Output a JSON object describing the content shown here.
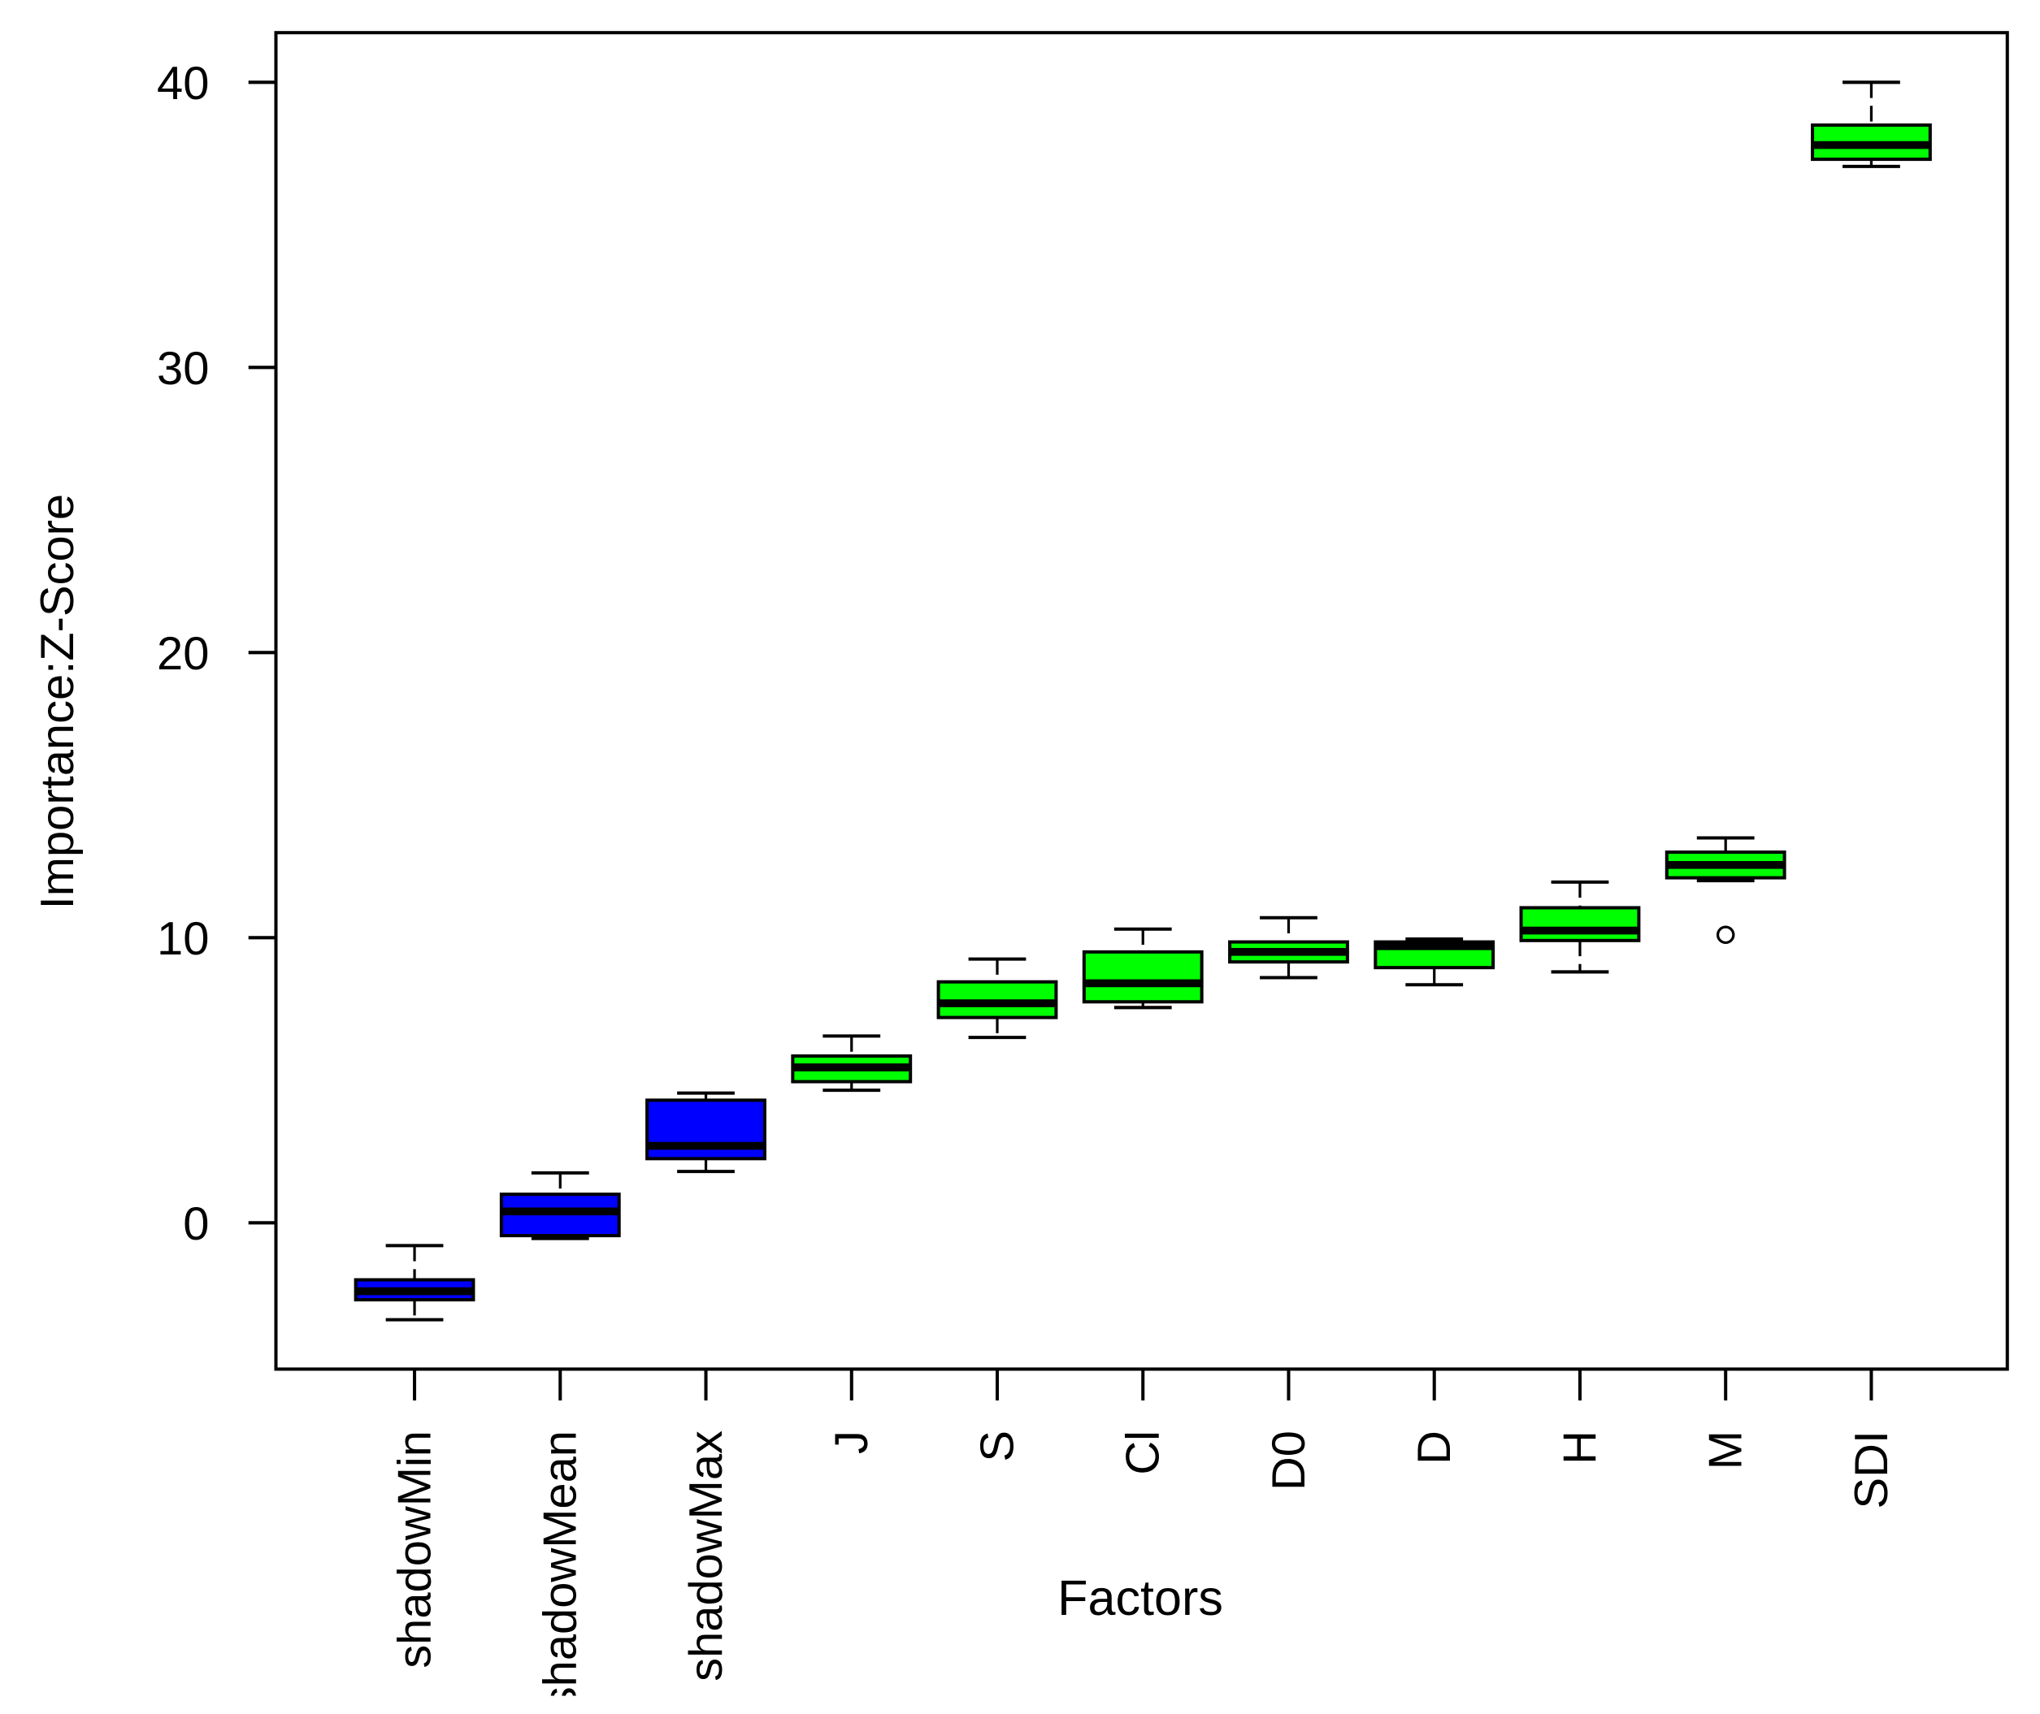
{
  "chart_data": {
    "type": "boxplot",
    "title": "",
    "xlabel": "Factors",
    "ylabel": "Importance:Z-Score",
    "ylim": [
      -5,
      41.8
    ],
    "yticks": [
      0,
      10,
      20,
      30,
      40
    ],
    "grid": false,
    "colors": {
      "rejected": "#0000ff",
      "confirmed": "#00ff00"
    },
    "categories": [
      "shadowMin",
      "shadowMean",
      "shadowMax",
      "J",
      "S",
      "Cl",
      "D0",
      "D",
      "H",
      "M",
      "SDI"
    ],
    "boxes": [
      {
        "name": "shadowMin",
        "group": "rejected",
        "min": -3.4,
        "q1": -2.7,
        "median": -2.4,
        "q3": -2.0,
        "max": -0.8,
        "outliers": []
      },
      {
        "name": "shadowMean",
        "group": "rejected",
        "min": -0.55,
        "q1": -0.45,
        "median": 0.4,
        "q3": 1.0,
        "max": 1.75,
        "outliers": []
      },
      {
        "name": "shadowMax",
        "group": "rejected",
        "min": 1.8,
        "q1": 2.25,
        "median": 2.7,
        "q3": 4.3,
        "max": 4.55,
        "outliers": []
      },
      {
        "name": "J",
        "group": "confirmed",
        "min": 4.65,
        "q1": 4.95,
        "median": 5.45,
        "q3": 5.85,
        "max": 6.55,
        "outliers": []
      },
      {
        "name": "S",
        "group": "confirmed",
        "min": 6.5,
        "q1": 7.2,
        "median": 7.7,
        "q3": 8.45,
        "max": 9.25,
        "outliers": []
      },
      {
        "name": "Cl",
        "group": "confirmed",
        "min": 7.55,
        "q1": 7.75,
        "median": 8.4,
        "q3": 9.5,
        "max": 10.3,
        "outliers": []
      },
      {
        "name": "D0",
        "group": "confirmed",
        "min": 8.6,
        "q1": 9.15,
        "median": 9.5,
        "q3": 9.85,
        "max": 10.7,
        "outliers": []
      },
      {
        "name": "D",
        "group": "confirmed",
        "min": 8.35,
        "q1": 8.95,
        "median": 9.7,
        "q3": 9.85,
        "max": 9.95,
        "outliers": []
      },
      {
        "name": "H",
        "group": "confirmed",
        "min": 8.8,
        "q1": 9.9,
        "median": 10.25,
        "q3": 11.05,
        "max": 11.95,
        "outliers": []
      },
      {
        "name": "M",
        "group": "confirmed",
        "min": 12.0,
        "q1": 12.1,
        "median": 12.55,
        "q3": 13.0,
        "max": 13.5,
        "outliers": [
          10.1
        ]
      },
      {
        "name": "SDI",
        "group": "confirmed",
        "min": 37.05,
        "q1": 37.3,
        "median": 37.8,
        "q3": 38.5,
        "max": 40.0,
        "outliers": []
      }
    ]
  }
}
